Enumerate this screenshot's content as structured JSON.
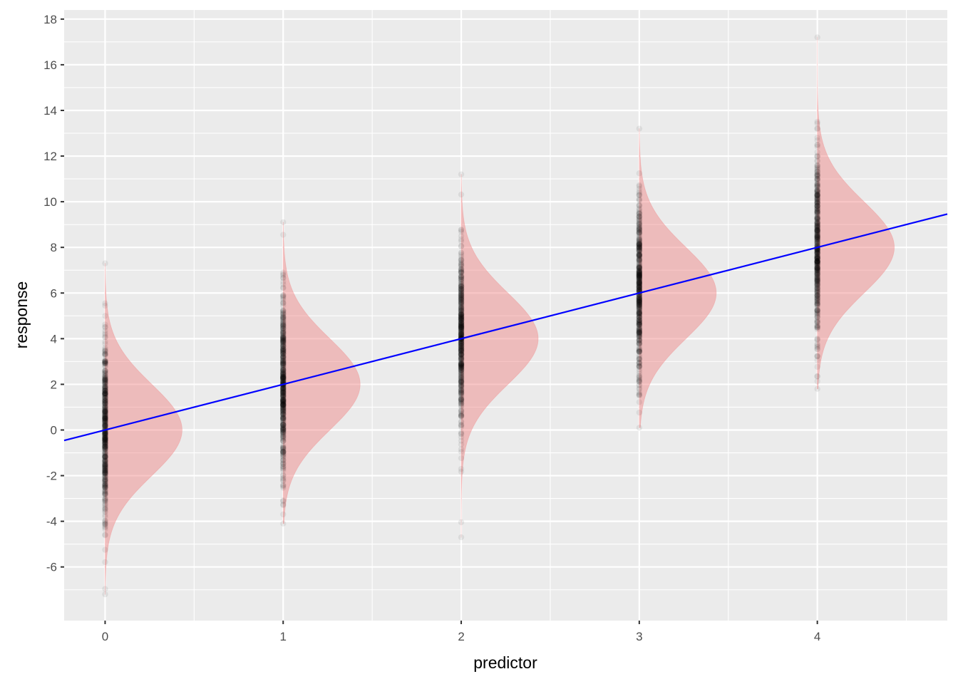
{
  "chart_data": {
    "type": "scatter",
    "xlabel": "predictor",
    "ylabel": "response",
    "xlim": [
      -0.23,
      4.73
    ],
    "ylim": [
      -8.35,
      18.4
    ],
    "x_ticks": [
      0,
      1,
      2,
      3,
      4
    ],
    "y_ticks": [
      -6,
      -4,
      -2,
      0,
      2,
      4,
      6,
      8,
      10,
      12,
      14,
      16,
      18
    ],
    "grid": true,
    "colors": {
      "panel_background": "#ebebeb",
      "grid": "#ffffff",
      "points": "#000000",
      "density_fill": "#f08080",
      "fit_line": "#0000ff"
    },
    "groups": [
      {
        "x": 0,
        "mean": 0,
        "sd": 2,
        "min": -7.2,
        "max": 7.3
      },
      {
        "x": 1,
        "mean": 2,
        "sd": 2,
        "min": -4.1,
        "max": 9.1
      },
      {
        "x": 2,
        "mean": 4,
        "sd": 2,
        "min": -4.7,
        "max": 11.2
      },
      {
        "x": 3,
        "mean": 6,
        "sd": 2,
        "min": 0.1,
        "max": 13.2
      },
      {
        "x": 4,
        "mean": 8,
        "sd": 2,
        "min": 1.8,
        "max": 17.2
      }
    ],
    "fit_line": {
      "intercept": 0,
      "slope": 2
    }
  }
}
